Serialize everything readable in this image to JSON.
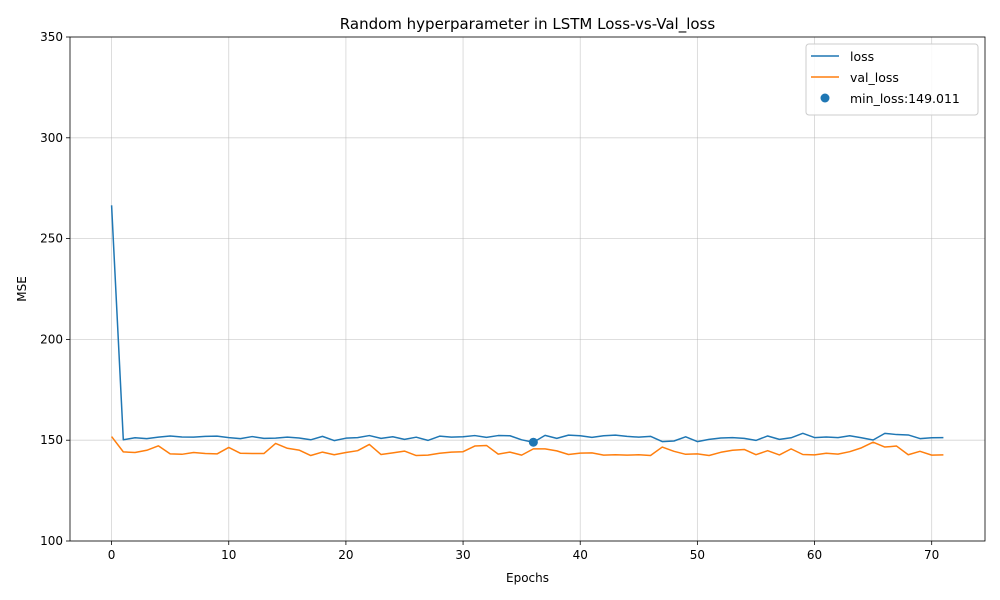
{
  "chart_data": {
    "type": "line",
    "title": "Random hyperparameter in LSTM Loss-vs-Val_loss",
    "xlabel": "Epochs",
    "ylabel": "MSE",
    "xlim": [
      -3.55,
      74.55
    ],
    "ylim": [
      100,
      350
    ],
    "xticks": [
      0,
      10,
      20,
      30,
      40,
      50,
      60,
      70
    ],
    "yticks": [
      100,
      150,
      200,
      250,
      300,
      350
    ],
    "grid": true,
    "legend_position": "top-right",
    "x": [
      0,
      1,
      2,
      3,
      4,
      5,
      6,
      7,
      8,
      9,
      10,
      11,
      12,
      13,
      14,
      15,
      16,
      17,
      18,
      19,
      20,
      21,
      22,
      23,
      24,
      25,
      26,
      27,
      28,
      29,
      30,
      31,
      32,
      33,
      34,
      35,
      36,
      37,
      38,
      39,
      40,
      41,
      42,
      43,
      44,
      45,
      46,
      47,
      48,
      49,
      50,
      51,
      52,
      53,
      54,
      55,
      56,
      57,
      58,
      59,
      60,
      61,
      62,
      63,
      64,
      65,
      66,
      67,
      68,
      69,
      70,
      71
    ],
    "series": [
      {
        "name": "loss",
        "color": "#1f77b4",
        "values": [
          266.5,
          150.2,
          151.2,
          150.8,
          151.5,
          152.1,
          151.6,
          151.5,
          151.9,
          152.0,
          151.3,
          150.8,
          151.8,
          150.9,
          151.0,
          151.5,
          151.1,
          150.2,
          151.9,
          149.8,
          151.0,
          151.3,
          152.3,
          150.9,
          151.7,
          150.4,
          151.5,
          149.9,
          152.0,
          151.5,
          151.7,
          152.3,
          151.4,
          152.3,
          152.2,
          150.2,
          149.0,
          152.4,
          150.9,
          152.5,
          152.2,
          151.4,
          152.2,
          152.5,
          151.9,
          151.5,
          151.9,
          149.3,
          149.6,
          151.7,
          149.3,
          150.4,
          151.1,
          151.3,
          150.9,
          149.9,
          152.1,
          150.4,
          151.2,
          153.4,
          151.3,
          151.6,
          151.3,
          152.2,
          151.2,
          150.1,
          153.4,
          152.8,
          152.6,
          150.8,
          151.2,
          151.3
        ]
      },
      {
        "name": "val_loss",
        "color": "#ff7f0e",
        "values": [
          151.8,
          144.2,
          143.9,
          145.0,
          147.2,
          143.2,
          143.0,
          143.9,
          143.4,
          143.2,
          146.4,
          143.5,
          143.4,
          143.4,
          148.4,
          146.0,
          145.1,
          142.4,
          144.1,
          142.8,
          143.9,
          144.8,
          147.9,
          142.9,
          143.7,
          144.6,
          142.4,
          142.6,
          143.5,
          144.1,
          144.3,
          147.1,
          147.4,
          143.1,
          144.1,
          142.6,
          145.7,
          145.7,
          144.7,
          142.9,
          143.6,
          143.7,
          142.6,
          142.8,
          142.6,
          142.8,
          142.4,
          146.6,
          144.5,
          143.0,
          143.2,
          142.4,
          144.0,
          145.0,
          145.4,
          142.8,
          144.8,
          142.7,
          145.7,
          142.9,
          142.7,
          143.5,
          143.1,
          144.3,
          146.2,
          149.0,
          146.6,
          147.1,
          142.8,
          144.5,
          142.6,
          142.7
        ]
      }
    ],
    "min_marker": {
      "label": "min_loss:149.011",
      "x": 36,
      "y": 149.011,
      "color": "#1f77b4"
    }
  }
}
